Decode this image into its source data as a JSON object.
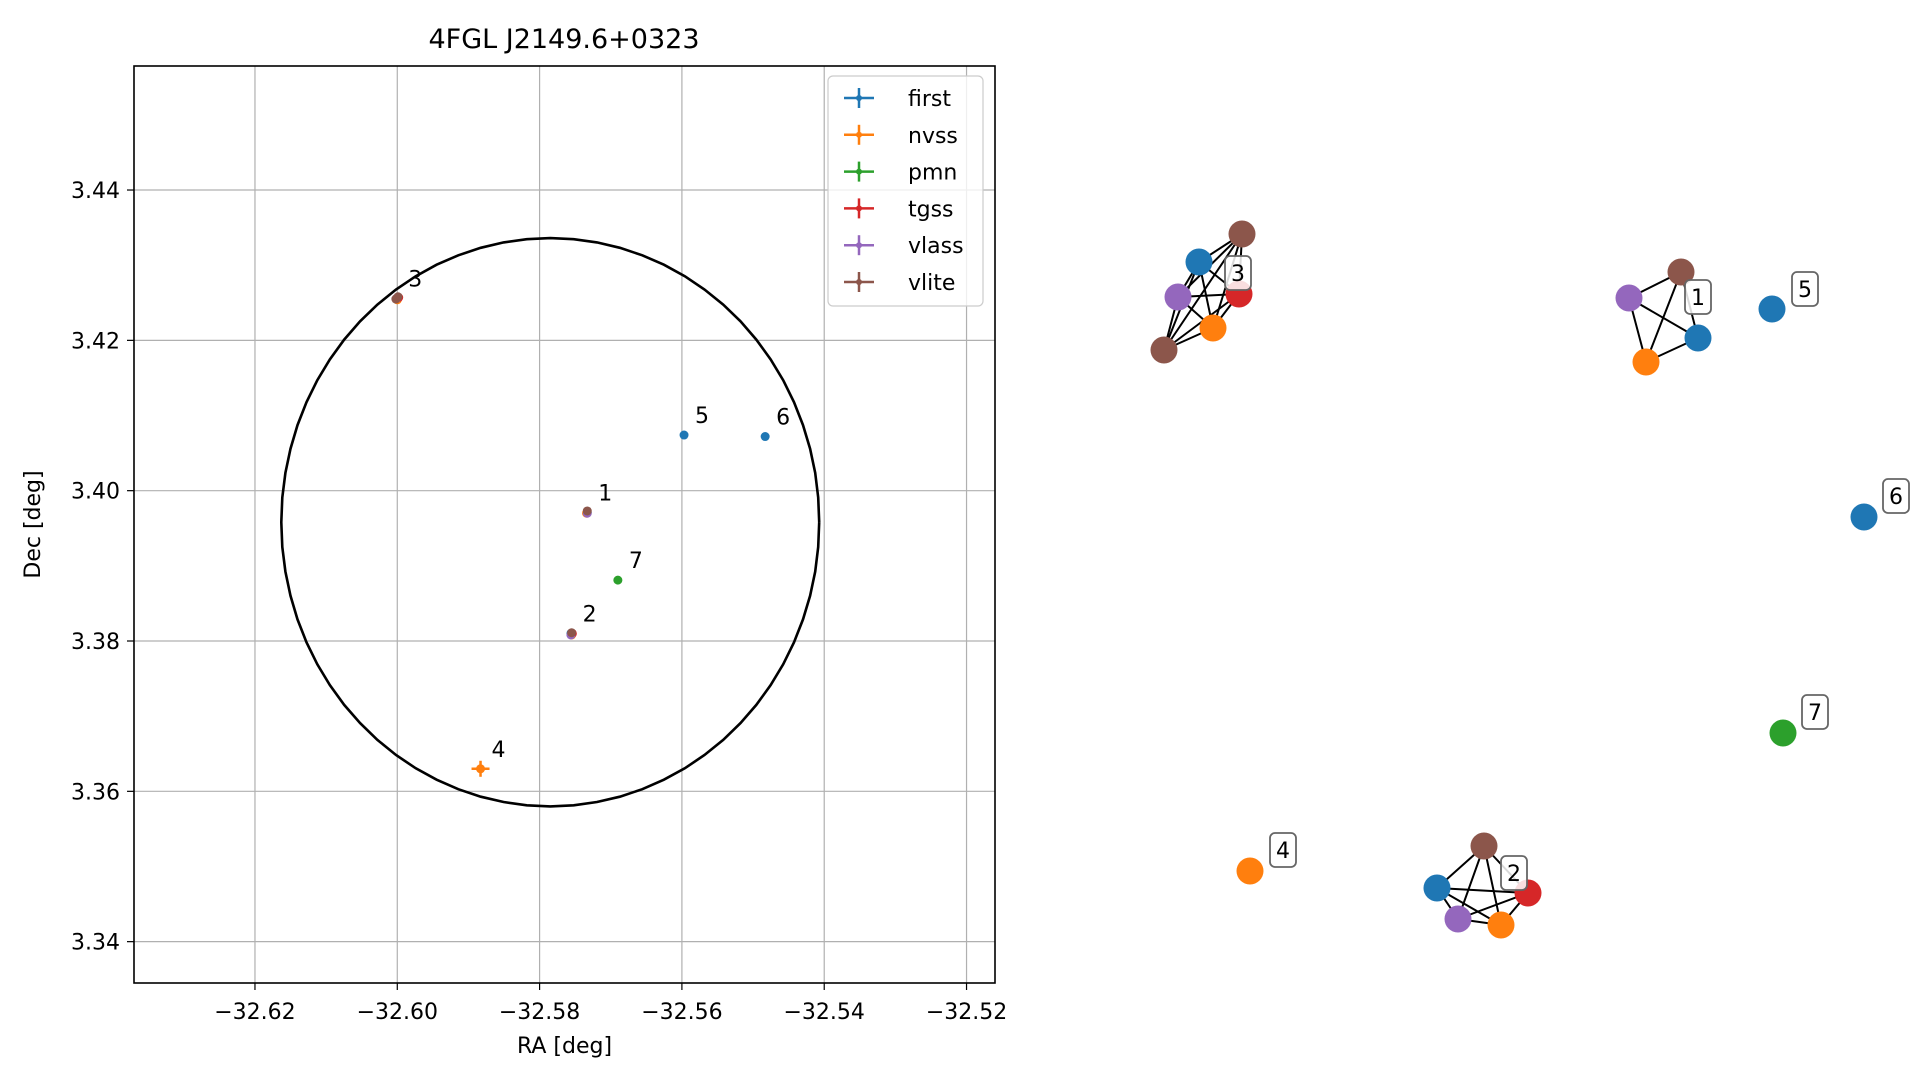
{
  "chart_data": [
    {
      "type": "scatter",
      "title": "4FGL J2149.6+0323",
      "xlabel": "RA [deg]",
      "ylabel": "Dec [deg]",
      "xlim": [
        -32.637,
        -32.516
      ],
      "ylim": [
        3.3345,
        3.4565
      ],
      "xticks": [
        -32.62,
        -32.6,
        -32.58,
        -32.56,
        -32.54,
        -32.52
      ],
      "xtick_labels": [
        "−32.62",
        "−32.60",
        "−32.58",
        "−32.56",
        "−32.54",
        "−32.52"
      ],
      "yticks": [
        3.34,
        3.36,
        3.38,
        3.4,
        3.42,
        3.44
      ],
      "ytick_labels": [
        "3.34",
        "3.36",
        "3.38",
        "3.40",
        "3.42",
        "3.44"
      ],
      "grid": true,
      "legend_position": "top-right",
      "series": [
        {
          "name": "first",
          "color": "#1f77b4"
        },
        {
          "name": "nvss",
          "color": "#ff7f0e"
        },
        {
          "name": "pmn",
          "color": "#2ca02c"
        },
        {
          "name": "tgss",
          "color": "#d62728"
        },
        {
          "name": "vlass",
          "color": "#9467bd"
        },
        {
          "name": "vlite",
          "color": "#8c564b"
        }
      ],
      "points": [
        {
          "survey": "first",
          "ra": -32.6,
          "dec": 3.4255
        },
        {
          "survey": "nvss",
          "ra": -32.6,
          "dec": 3.4254
        },
        {
          "survey": "tgss",
          "ra": -32.5998,
          "dec": 3.4257
        },
        {
          "survey": "vlass",
          "ra": -32.6001,
          "dec": 3.4256
        },
        {
          "survey": "vlite",
          "ra": -32.6002,
          "dec": 3.4255
        },
        {
          "survey": "vlite",
          "ra": -32.5999,
          "dec": 3.4258
        },
        {
          "survey": "first",
          "ra": -32.5733,
          "dec": 3.3971
        },
        {
          "survey": "nvss",
          "ra": -32.5734,
          "dec": 3.397
        },
        {
          "survey": "vlass",
          "ra": -32.5733,
          "dec": 3.397
        },
        {
          "survey": "vlite",
          "ra": -32.5733,
          "dec": 3.3973
        },
        {
          "survey": "first",
          "ra": -32.5756,
          "dec": 3.381
        },
        {
          "survey": "nvss",
          "ra": -32.5755,
          "dec": 3.3808
        },
        {
          "survey": "tgss",
          "ra": -32.5754,
          "dec": 3.381
        },
        {
          "survey": "vlass",
          "ra": -32.5756,
          "dec": 3.3808
        },
        {
          "survey": "vlite",
          "ra": -32.5755,
          "dec": 3.3811
        },
        {
          "survey": "nvss",
          "ra": -32.5883,
          "dec": 3.363
        },
        {
          "survey": "first",
          "ra": -32.5597,
          "dec": 3.4074
        },
        {
          "survey": "first",
          "ra": -32.5483,
          "dec": 3.4072
        },
        {
          "survey": "pmn",
          "ra": -32.569,
          "dec": 3.3881
        }
      ],
      "annotations": [
        {
          "text": "1",
          "ra": -32.5733,
          "dec": 3.3971
        },
        {
          "text": "2",
          "ra": -32.5755,
          "dec": 3.381
        },
        {
          "text": "3",
          "ra": -32.6,
          "dec": 3.4256
        },
        {
          "text": "4",
          "ra": -32.5883,
          "dec": 3.363
        },
        {
          "text": "5",
          "ra": -32.5597,
          "dec": 3.4074
        },
        {
          "text": "6",
          "ra": -32.5483,
          "dec": 3.4072
        },
        {
          "text": "7",
          "ra": -32.569,
          "dec": 3.3881
        }
      ],
      "circle": {
        "center_ra": -32.5785,
        "center_dec": 3.3958,
        "radius_deg": 0.0378
      }
    },
    {
      "type": "network",
      "node_colors": {
        "first": "#1f77b4",
        "nvss": "#ff7f0e",
        "pmn": "#2ca02c",
        "tgss": "#d62728",
        "vlass": "#9467bd",
        "vlite": "#8c564b"
      },
      "groups": [
        {
          "label": "3",
          "nodes": [
            {
              "id": "g3a",
              "survey": "first"
            },
            {
              "id": "g3b",
              "survey": "vlite"
            },
            {
              "id": "g3c",
              "survey": "tgss"
            },
            {
              "id": "g3d",
              "survey": "vlass"
            },
            {
              "id": "g3e",
              "survey": "nvss"
            },
            {
              "id": "g3f",
              "survey": "vlite"
            }
          ],
          "edges": [
            [
              "g3a",
              "g3b"
            ],
            [
              "g3a",
              "g3c"
            ],
            [
              "g3a",
              "g3d"
            ],
            [
              "g3a",
              "g3e"
            ],
            [
              "g3a",
              "g3f"
            ],
            [
              "g3b",
              "g3c"
            ],
            [
              "g3b",
              "g3d"
            ],
            [
              "g3b",
              "g3e"
            ],
            [
              "g3b",
              "g3f"
            ],
            [
              "g3c",
              "g3d"
            ],
            [
              "g3c",
              "g3e"
            ],
            [
              "g3c",
              "g3f"
            ],
            [
              "g3d",
              "g3e"
            ],
            [
              "g3d",
              "g3f"
            ],
            [
              "g3e",
              "g3f"
            ]
          ]
        },
        {
          "label": "1",
          "nodes": [
            {
              "id": "g1a",
              "survey": "vlite"
            },
            {
              "id": "g1b",
              "survey": "vlass"
            },
            {
              "id": "g1c",
              "survey": "first"
            },
            {
              "id": "g1d",
              "survey": "nvss"
            }
          ],
          "edges": [
            [
              "g1a",
              "g1b"
            ],
            [
              "g1a",
              "g1c"
            ],
            [
              "g1a",
              "g1d"
            ],
            [
              "g1b",
              "g1c"
            ],
            [
              "g1b",
              "g1d"
            ],
            [
              "g1c",
              "g1d"
            ]
          ]
        },
        {
          "label": "5",
          "nodes": [
            {
              "id": "g5a",
              "survey": "first"
            }
          ],
          "edges": []
        },
        {
          "label": "6",
          "nodes": [
            {
              "id": "g6a",
              "survey": "first"
            }
          ],
          "edges": []
        },
        {
          "label": "7",
          "nodes": [
            {
              "id": "g7a",
              "survey": "pmn"
            }
          ],
          "edges": []
        },
        {
          "label": "4",
          "nodes": [
            {
              "id": "g4a",
              "survey": "nvss"
            }
          ],
          "edges": []
        },
        {
          "label": "2",
          "nodes": [
            {
              "id": "g2a",
              "survey": "vlite"
            },
            {
              "id": "g2b",
              "survey": "first"
            },
            {
              "id": "g2c",
              "survey": "tgss"
            },
            {
              "id": "g2d",
              "survey": "vlass"
            },
            {
              "id": "g2e",
              "survey": "nvss"
            }
          ],
          "edges": [
            [
              "g2a",
              "g2b"
            ],
            [
              "g2a",
              "g2c"
            ],
            [
              "g2a",
              "g2d"
            ],
            [
              "g2a",
              "g2e"
            ],
            [
              "g2b",
              "g2c"
            ],
            [
              "g2b",
              "g2d"
            ],
            [
              "g2b",
              "g2e"
            ],
            [
              "g2c",
              "g2d"
            ],
            [
              "g2c",
              "g2e"
            ],
            [
              "g2d",
              "g2e"
            ]
          ]
        }
      ]
    }
  ]
}
